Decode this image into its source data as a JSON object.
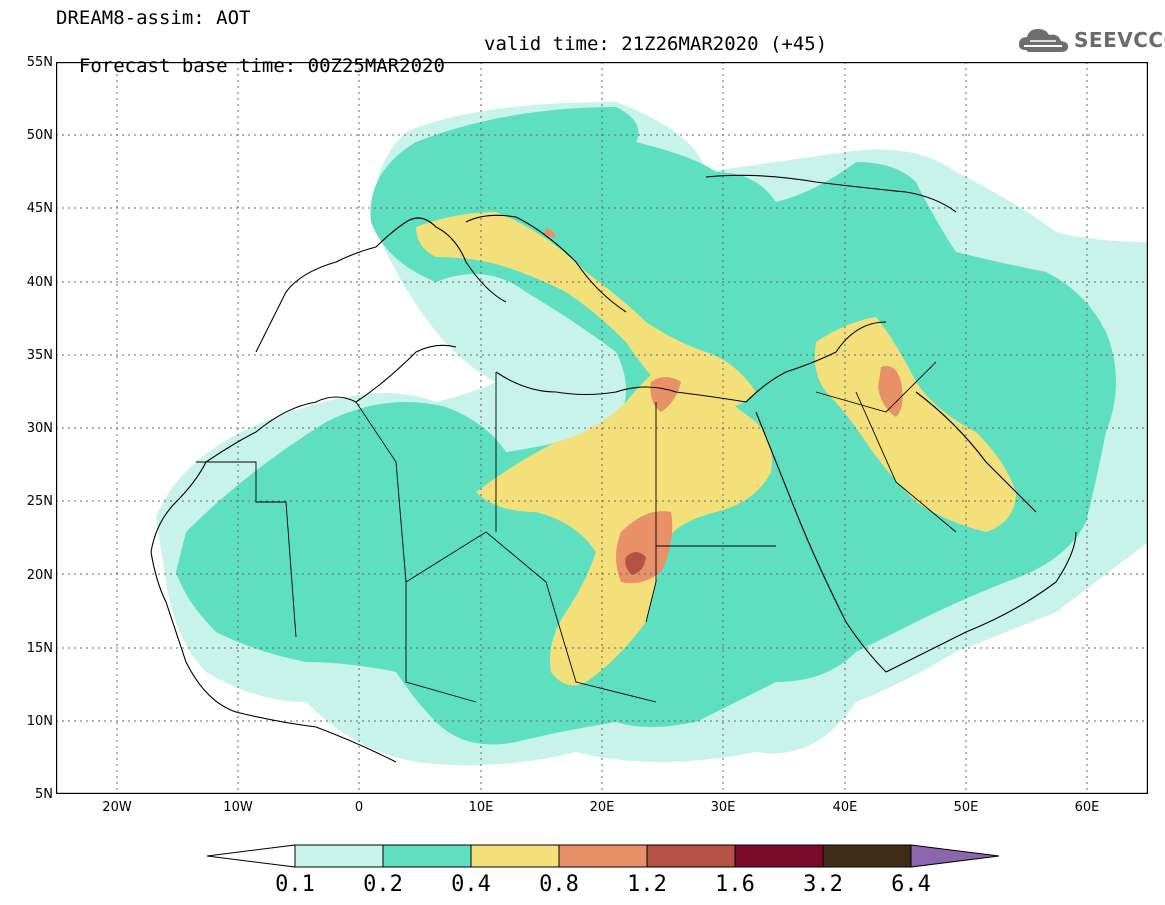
{
  "header": {
    "title_line1": "DREAM8-assim: AOT",
    "title_line2_base": "Forecast base time: 00Z25MAR2020",
    "title_line2_valid": "valid time: 21Z26MAR2020 (+45)"
  },
  "logo": {
    "icon": "cloud-icon",
    "text": "SEEVCCC"
  },
  "axes": {
    "lat_labels": [
      "55N",
      "50N",
      "45N",
      "40N",
      "35N",
      "30N",
      "25N",
      "20N",
      "15N",
      "10N",
      "5N"
    ],
    "lon_labels": [
      "20W",
      "10W",
      "0",
      "10E",
      "20E",
      "30E",
      "40E",
      "50E",
      "60E"
    ],
    "lat_range": [
      5,
      55
    ],
    "lon_range": [
      -25,
      65
    ]
  },
  "colorbar": {
    "labels": [
      "0.1",
      "0.2",
      "0.4",
      "0.8",
      "1.2",
      "1.6",
      "3.2",
      "6.4"
    ],
    "colors": [
      "#ffffff",
      "#c8f3ea",
      "#5ee0c0",
      "#f3e07a",
      "#e89068",
      "#b55145",
      "#7a0a2a",
      "#402c16",
      "#8d65ad"
    ]
  },
  "colors": {
    "c1": "#c8f3ea",
    "c2": "#5ee0c0",
    "c3": "#f3e07a",
    "c4": "#e89068",
    "c5": "#b55145",
    "c6": "#7a0a2a"
  }
}
